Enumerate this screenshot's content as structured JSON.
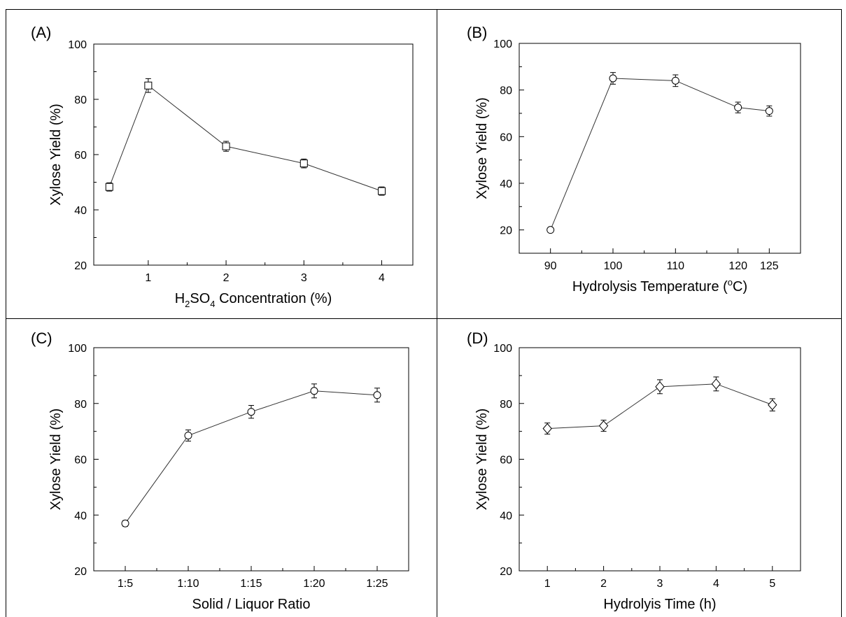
{
  "chart_data": [
    {
      "panel_label": "(A)",
      "type": "line",
      "marker": "square",
      "x_tick_labels": [
        "1",
        "2",
        "3",
        "4"
      ],
      "x": [
        0.5,
        1,
        2,
        3,
        4
      ],
      "y": [
        48.3,
        85.0,
        63.0,
        56.8,
        46.8
      ],
      "yerr": [
        1.5,
        2.5,
        1.8,
        1.6,
        1.5
      ],
      "xlabel": "H2SO4 Concentration (%)",
      "xlabel_parts": [
        "H",
        "2",
        "SO",
        "4",
        " Concentration (%)"
      ],
      "ylabel": "Xylose Yield (%)",
      "xlim": [
        0.3,
        4.4
      ],
      "ylim": [
        20,
        100
      ],
      "y_ticks": [
        20,
        40,
        60,
        80,
        100
      ]
    },
    {
      "panel_label": "(B)",
      "type": "line",
      "marker": "circle",
      "x_tick_labels": [
        "90",
        "100",
        "110",
        "120",
        "125"
      ],
      "x": [
        90,
        100,
        110,
        120,
        125
      ],
      "y": [
        20.0,
        85.0,
        84.0,
        72.5,
        71.0
      ],
      "yerr": [
        1.0,
        2.5,
        2.5,
        2.3,
        2.2
      ],
      "xlabel": "Hydrolysis Temperature (oC)",
      "xlabel_parts": [
        "Hydrolysis Temperature (",
        "o",
        "C)"
      ],
      "ylabel": "Xylose Yield (%)",
      "xlim": [
        85,
        130
      ],
      "ylim": [
        10,
        100
      ],
      "y_ticks": [
        20,
        40,
        60,
        80,
        100
      ]
    },
    {
      "panel_label": "(C)",
      "type": "line",
      "marker": "circle",
      "x_tick_labels": [
        "1:5",
        "1:10",
        "1:15",
        "1:20",
        "1:25"
      ],
      "x": [
        "1:5",
        "1:10",
        "1:15",
        "1:20",
        "1:25"
      ],
      "y": [
        37.0,
        68.5,
        77.0,
        84.5,
        83.0
      ],
      "yerr": [
        1.0,
        2.0,
        2.3,
        2.5,
        2.5
      ],
      "xlabel": "Solid / Liquor Ratio",
      "ylabel": "Xylose Yield (%)",
      "xlim": [
        0.5,
        5.5
      ],
      "ylim": [
        20,
        100
      ],
      "y_ticks": [
        20,
        40,
        60,
        80,
        100
      ]
    },
    {
      "panel_label": "(D)",
      "type": "line",
      "marker": "diamond",
      "x_tick_labels": [
        "1",
        "2",
        "3",
        "4",
        "5"
      ],
      "x": [
        1,
        2,
        3,
        4,
        5
      ],
      "y": [
        71.0,
        72.0,
        86.0,
        87.0,
        79.5
      ],
      "yerr": [
        2.0,
        2.0,
        2.5,
        2.5,
        2.2
      ],
      "xlabel": "Hydrolyis Time (h)",
      "ylabel": "Xylose Yield (%)",
      "xlim": [
        0.5,
        5.5
      ],
      "ylim": [
        20,
        100
      ],
      "y_ticks": [
        20,
        40,
        60,
        80,
        100
      ]
    }
  ]
}
